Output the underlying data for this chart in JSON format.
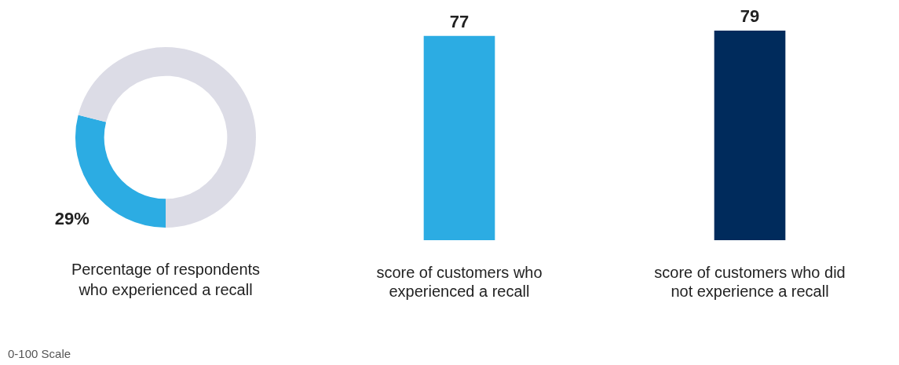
{
  "chart_data": [
    {
      "type": "donut",
      "categories": [
        null,
        null
      ],
      "values": [
        29,
        71
      ],
      "colors": [
        "#2cace3",
        "#dcdce6"
      ],
      "value_labels": [
        "29%",
        null
      ],
      "xlabel": "Percentage of respondents who experienced a recall",
      "annotations": [
        "0-100 Scale"
      ]
    },
    {
      "type": "bar",
      "categories": [
        "score of customers who experienced a recall",
        "score of customers who did not experience a recall"
      ],
      "values": [
        77,
        79
      ],
      "colors": [
        "#2cace3",
        "#002b5c"
      ],
      "data_labels": true,
      "tick_labels": "x"
    }
  ]
}
